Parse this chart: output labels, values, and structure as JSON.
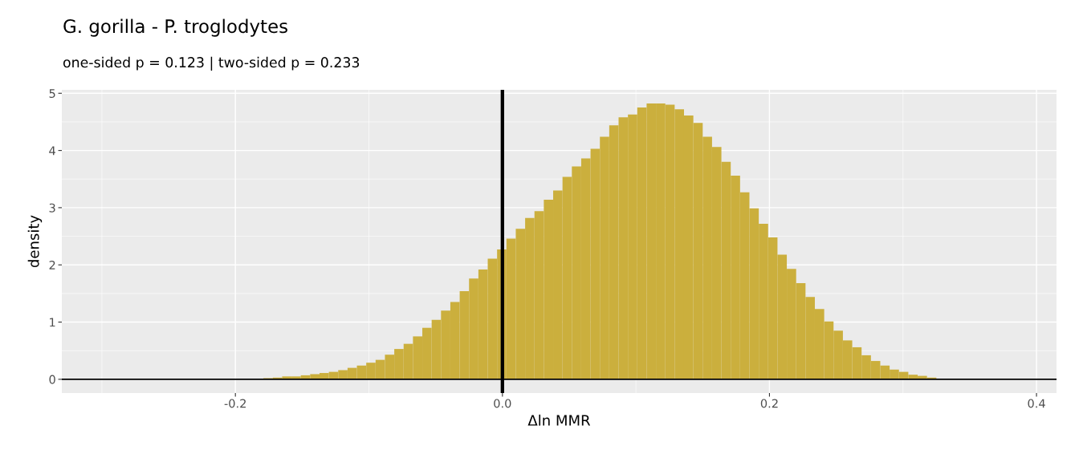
{
  "chart_data": {
    "type": "histogram",
    "title": "G. gorilla - P. troglodytes",
    "subtitle": "one-sided p = 0.123 | two-sided p = 0.233",
    "xlabel": "Δln MMR",
    "ylabel": "density",
    "color": "#cbaf3d",
    "bins": [
      -0.179,
      -0.172,
      -0.165,
      -0.158,
      -0.151,
      -0.144,
      -0.137,
      -0.13,
      -0.123,
      -0.116,
      -0.109,
      -0.102,
      -0.095,
      -0.088,
      -0.081,
      -0.074,
      -0.067,
      -0.06,
      -0.053,
      -0.046,
      -0.039,
      -0.032,
      -0.025,
      -0.018,
      -0.011,
      -0.004,
      0.003,
      0.01,
      0.017,
      0.024,
      0.031,
      0.038,
      0.045,
      0.052,
      0.059,
      0.066,
      0.073,
      0.08,
      0.087,
      0.094,
      0.101,
      0.108,
      0.115,
      0.122,
      0.129,
      0.136,
      0.143,
      0.15,
      0.157,
      0.164,
      0.171,
      0.178,
      0.185,
      0.192,
      0.199,
      0.206,
      0.213,
      0.22,
      0.227,
      0.234,
      0.241,
      0.248,
      0.255,
      0.262,
      0.269,
      0.276,
      0.283,
      0.29,
      0.297,
      0.304,
      0.311,
      0.318,
      0.325
    ],
    "values": [
      0.02,
      0.03,
      0.05,
      0.05,
      0.07,
      0.09,
      0.11,
      0.13,
      0.16,
      0.2,
      0.24,
      0.29,
      0.34,
      0.43,
      0.53,
      0.62,
      0.75,
      0.9,
      1.04,
      1.2,
      1.35,
      1.54,
      1.76,
      1.92,
      2.11,
      2.27,
      2.46,
      2.63,
      2.82,
      2.94,
      3.14,
      3.3,
      3.54,
      3.72,
      3.86,
      4.03,
      4.24,
      4.44,
      4.58,
      4.63,
      4.75,
      4.82,
      4.82,
      4.8,
      4.72,
      4.61,
      4.48,
      4.24,
      4.06,
      3.8,
      3.56,
      3.27,
      2.99,
      2.72,
      2.48,
      2.18,
      1.93,
      1.68,
      1.44,
      1.23,
      1.01,
      0.85,
      0.68,
      0.56,
      0.42,
      0.32,
      0.24,
      0.17,
      0.13,
      0.08,
      0.06,
      0.03
    ],
    "xlim": [
      -0.33,
      0.415
    ],
    "xticks": [
      -0.2,
      {
        "value": 0,
        "label": "0.0"
      },
      0.2,
      0.4
    ],
    "ylim": [
      -0.24,
      5.06
    ],
    "yticks": [
      0,
      1,
      2,
      3,
      4,
      5
    ],
    "ref_lines": [
      {
        "axis": "x",
        "value": 0,
        "color": "#000000"
      },
      {
        "axis": "y",
        "value": 0,
        "color": "#000000"
      }
    ],
    "grid": true
  }
}
